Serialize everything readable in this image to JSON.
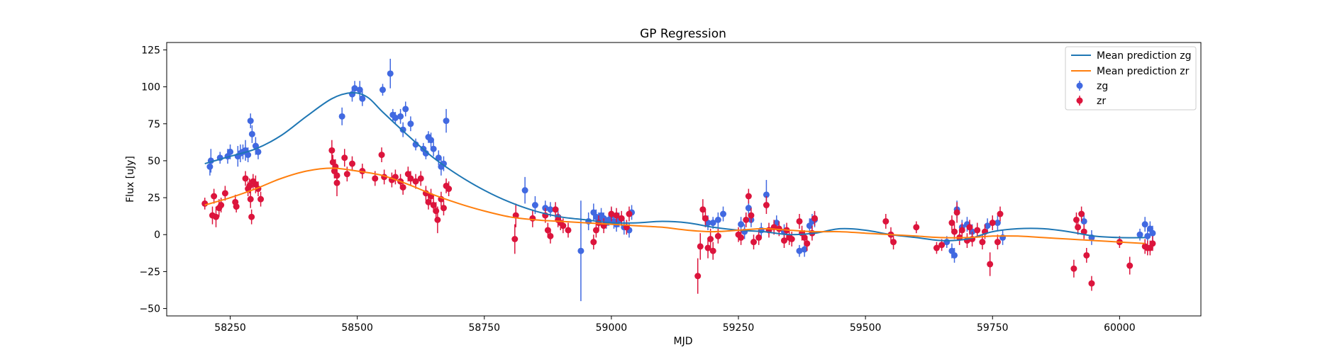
{
  "chart_data": {
    "type": "scatter",
    "title": "GP Regression",
    "xlabel": "MJD",
    "ylabel": "Flux [uJy]",
    "xlim": [
      58125,
      60160
    ],
    "ylim": [
      -55,
      130
    ],
    "xticks": [
      58250,
      58500,
      58750,
      59000,
      59250,
      59500,
      59750,
      60000
    ],
    "yticks": [
      -50,
      -25,
      0,
      25,
      50,
      75,
      100,
      125
    ],
    "grid": false,
    "legend_position": "top-right",
    "colors": {
      "zg_points": "#4169e1",
      "zr_points": "#dc143c",
      "zg_line": "#1f77b4",
      "zr_line": "#ff7f0e"
    },
    "lines": [
      {
        "name": "Mean prediction zg",
        "x": [
          58200,
          58250,
          58300,
          58350,
          58400,
          58450,
          58490,
          58520,
          58550,
          58600,
          58650,
          58700,
          58750,
          58800,
          58850,
          58900,
          58950,
          59000,
          59050,
          59100,
          59150,
          59200,
          59250,
          59300,
          59350,
          59400,
          59450,
          59500,
          59550,
          59600,
          59650,
          59700,
          59750,
          59800,
          59850,
          59900,
          59950,
          60000,
          60050
        ],
        "y": [
          48,
          53,
          58,
          67,
          80,
          92,
          96,
          93,
          83,
          67,
          52,
          40,
          30,
          22,
          16,
          12,
          10,
          8,
          8,
          9,
          8,
          5,
          3,
          2,
          0,
          1,
          4,
          3,
          0,
          -2,
          -4,
          -3,
          2,
          4,
          4,
          2,
          -1,
          -2,
          -2
        ]
      },
      {
        "name": "Mean prediction zr",
        "x": [
          58200,
          58250,
          58300,
          58350,
          58400,
          58450,
          58500,
          58550,
          58600,
          58650,
          58700,
          58750,
          58800,
          58850,
          58900,
          58950,
          59000,
          59050,
          59100,
          59150,
          59200,
          59250,
          59300,
          59350,
          59400,
          59450,
          59500,
          59550,
          59600,
          59650,
          59700,
          59750,
          59800,
          59850,
          59900,
          59950,
          60000,
          60050
        ],
        "y": [
          20,
          25,
          31,
          38,
          43,
          45,
          43,
          40,
          34,
          27,
          21,
          16,
          12,
          10,
          9,
          8,
          7,
          6,
          5,
          3,
          2,
          3,
          4,
          3,
          2,
          2,
          1,
          0,
          -1,
          -2,
          -2,
          -1,
          -1,
          -2,
          -3,
          -4,
          -5,
          -6
        ]
      }
    ],
    "series": [
      {
        "name": "zg",
        "points": [
          [
            58210,
            46,
            6
          ],
          [
            58212,
            50,
            8
          ],
          [
            58230,
            52,
            4
          ],
          [
            58245,
            53,
            5
          ],
          [
            58250,
            56,
            5
          ],
          [
            58265,
            53,
            7
          ],
          [
            58270,
            55,
            6
          ],
          [
            58275,
            56,
            5
          ],
          [
            58280,
            57,
            7
          ],
          [
            58285,
            54,
            5
          ],
          [
            58290,
            77,
            5
          ],
          [
            58293,
            68,
            6
          ],
          [
            58300,
            60,
            6
          ],
          [
            58305,
            56,
            5
          ],
          [
            58470,
            80,
            6
          ],
          [
            58490,
            95,
            5
          ],
          [
            58495,
            99,
            5
          ],
          [
            58505,
            98,
            6
          ],
          [
            58510,
            92,
            5
          ],
          [
            58550,
            98,
            4
          ],
          [
            58565,
            109,
            10
          ],
          [
            58570,
            81,
            4
          ],
          [
            58575,
            79,
            4
          ],
          [
            58585,
            80,
            5
          ],
          [
            58590,
            71,
            5
          ],
          [
            58595,
            85,
            5
          ],
          [
            58605,
            75,
            5
          ],
          [
            58615,
            61,
            4
          ],
          [
            58630,
            58,
            4
          ],
          [
            58635,
            55,
            4
          ],
          [
            58640,
            66,
            4
          ],
          [
            58645,
            64,
            5
          ],
          [
            58650,
            58,
            5
          ],
          [
            58660,
            52,
            5
          ],
          [
            58665,
            46,
            6
          ],
          [
            58670,
            48,
            5
          ],
          [
            58675,
            77,
            8
          ],
          [
            58830,
            30,
            9
          ],
          [
            58850,
            20,
            6
          ],
          [
            58870,
            18,
            5
          ],
          [
            58880,
            17,
            5
          ],
          [
            58895,
            12,
            6
          ],
          [
            58940,
            -11,
            34
          ],
          [
            58955,
            9,
            6
          ],
          [
            58965,
            15,
            6
          ],
          [
            58970,
            12,
            5
          ],
          [
            58975,
            10,
            5
          ],
          [
            58980,
            13,
            5
          ],
          [
            58985,
            11,
            4
          ],
          [
            58990,
            8,
            4
          ],
          [
            58995,
            10,
            4
          ],
          [
            59000,
            13,
            5
          ],
          [
            59005,
            9,
            5
          ],
          [
            59010,
            7,
            5
          ],
          [
            59015,
            10,
            5
          ],
          [
            59025,
            5,
            5
          ],
          [
            59035,
            3,
            5
          ],
          [
            59040,
            15,
            5
          ],
          [
            59190,
            8,
            5
          ],
          [
            59200,
            8,
            4
          ],
          [
            59210,
            10,
            5
          ],
          [
            59220,
            14,
            5
          ],
          [
            59255,
            7,
            5
          ],
          [
            59262,
            2,
            5
          ],
          [
            59270,
            18,
            5
          ],
          [
            59275,
            10,
            5
          ],
          [
            59295,
            3,
            5
          ],
          [
            59305,
            27,
            10
          ],
          [
            59325,
            8,
            5
          ],
          [
            59340,
            2,
            5
          ],
          [
            59370,
            -11,
            4
          ],
          [
            59380,
            -10,
            5
          ],
          [
            59390,
            6,
            5
          ],
          [
            59395,
            9,
            5
          ],
          [
            59400,
            10,
            5
          ],
          [
            59660,
            -5,
            4
          ],
          [
            59670,
            -11,
            5
          ],
          [
            59675,
            -14,
            5
          ],
          [
            59680,
            17,
            6
          ],
          [
            59690,
            5,
            5
          ],
          [
            59700,
            7,
            5
          ],
          [
            59710,
            2,
            5
          ],
          [
            59740,
            6,
            5
          ],
          [
            59760,
            8,
            5
          ],
          [
            59770,
            -2,
            5
          ],
          [
            59930,
            9,
            5
          ],
          [
            59945,
            -2,
            5
          ],
          [
            60040,
            0,
            4
          ],
          [
            60050,
            7,
            5
          ],
          [
            60055,
            -1,
            5
          ],
          [
            60060,
            4,
            5
          ],
          [
            60065,
            1,
            5
          ]
        ]
      },
      {
        "name": "zr",
        "points": [
          [
            58200,
            21,
            4
          ],
          [
            58215,
            13,
            6
          ],
          [
            58218,
            26,
            5
          ],
          [
            58222,
            12,
            7
          ],
          [
            58228,
            18,
            6
          ],
          [
            58232,
            20,
            5
          ],
          [
            58240,
            28,
            5
          ],
          [
            58260,
            22,
            5
          ],
          [
            58262,
            19,
            4
          ],
          [
            58280,
            38,
            5
          ],
          [
            58285,
            31,
            5
          ],
          [
            58288,
            33,
            5
          ],
          [
            58290,
            24,
            6
          ],
          [
            58292,
            12,
            5
          ],
          [
            58295,
            36,
            5
          ],
          [
            58300,
            34,
            6
          ],
          [
            58305,
            31,
            5
          ],
          [
            58310,
            24,
            5
          ],
          [
            58450,
            57,
            7
          ],
          [
            58452,
            49,
            5
          ],
          [
            58455,
            43,
            5
          ],
          [
            58457,
            46,
            5
          ],
          [
            58460,
            35,
            9
          ],
          [
            58460,
            40,
            6
          ],
          [
            58475,
            52,
            6
          ],
          [
            58480,
            41,
            5
          ],
          [
            58490,
            48,
            5
          ],
          [
            58510,
            43,
            5
          ],
          [
            58535,
            38,
            5
          ],
          [
            58548,
            54,
            5
          ],
          [
            58553,
            39,
            5
          ],
          [
            58568,
            37,
            5
          ],
          [
            58575,
            39,
            5
          ],
          [
            58585,
            36,
            5
          ],
          [
            58590,
            32,
            5
          ],
          [
            58600,
            41,
            5
          ],
          [
            58605,
            38,
            5
          ],
          [
            58615,
            36,
            5
          ],
          [
            58625,
            38,
            5
          ],
          [
            58635,
            28,
            5
          ],
          [
            58640,
            22,
            5
          ],
          [
            58645,
            26,
            5
          ],
          [
            58650,
            20,
            5
          ],
          [
            58655,
            16,
            6
          ],
          [
            58658,
            10,
            9
          ],
          [
            58665,
            24,
            5
          ],
          [
            58670,
            18,
            5
          ],
          [
            58675,
            33,
            5
          ],
          [
            58680,
            31,
            5
          ],
          [
            58810,
            -3,
            10
          ],
          [
            58812,
            13,
            8
          ],
          [
            58845,
            11,
            6
          ],
          [
            58870,
            13,
            5
          ],
          [
            58875,
            3,
            5
          ],
          [
            58880,
            -1,
            5
          ],
          [
            58890,
            17,
            5
          ],
          [
            58895,
            10,
            5
          ],
          [
            58900,
            8,
            5
          ],
          [
            58905,
            6,
            5
          ],
          [
            58915,
            3,
            5
          ],
          [
            58965,
            -5,
            5
          ],
          [
            58970,
            3,
            5
          ],
          [
            58975,
            8,
            5
          ],
          [
            58985,
            6,
            5
          ],
          [
            59000,
            14,
            5
          ],
          [
            59010,
            13,
            5
          ],
          [
            59020,
            11,
            5
          ],
          [
            59030,
            5,
            5
          ],
          [
            59035,
            14,
            5
          ],
          [
            59170,
            -28,
            12
          ],
          [
            59175,
            -8,
            9
          ],
          [
            59180,
            17,
            7
          ],
          [
            59185,
            11,
            6
          ],
          [
            59190,
            -9,
            7
          ],
          [
            59195,
            -3,
            7
          ],
          [
            59200,
            -11,
            6
          ],
          [
            59210,
            -1,
            5
          ],
          [
            59250,
            0,
            5
          ],
          [
            59255,
            -2,
            5
          ],
          [
            59265,
            10,
            5
          ],
          [
            59270,
            26,
            5
          ],
          [
            59275,
            13,
            5
          ],
          [
            59280,
            -5,
            5
          ],
          [
            59290,
            -2,
            5
          ],
          [
            59305,
            20,
            6
          ],
          [
            59310,
            3,
            5
          ],
          [
            59320,
            5,
            5
          ],
          [
            59330,
            4,
            5
          ],
          [
            59340,
            -4,
            5
          ],
          [
            59345,
            3,
            5
          ],
          [
            59350,
            -2,
            5
          ],
          [
            59355,
            -3,
            5
          ],
          [
            59370,
            9,
            5
          ],
          [
            59375,
            1,
            5
          ],
          [
            59380,
            -2,
            5
          ],
          [
            59385,
            -6,
            5
          ],
          [
            59395,
            1,
            5
          ],
          [
            59400,
            11,
            5
          ],
          [
            59540,
            9,
            5
          ],
          [
            59550,
            0,
            5
          ],
          [
            59555,
            -5,
            5
          ],
          [
            59600,
            5,
            4
          ],
          [
            59640,
            -9,
            4
          ],
          [
            59650,
            -7,
            4
          ],
          [
            59670,
            8,
            5
          ],
          [
            59675,
            2,
            5
          ],
          [
            59680,
            15,
            7
          ],
          [
            59685,
            -2,
            5
          ],
          [
            59690,
            3,
            5
          ],
          [
            59700,
            -4,
            5
          ],
          [
            59705,
            5,
            5
          ],
          [
            59710,
            -3,
            5
          ],
          [
            59720,
            3,
            5
          ],
          [
            59730,
            -5,
            5
          ],
          [
            59735,
            2,
            5
          ],
          [
            59745,
            -20,
            8
          ],
          [
            59750,
            8,
            5
          ],
          [
            59760,
            -5,
            5
          ],
          [
            59765,
            14,
            5
          ],
          [
            59910,
            -23,
            6
          ],
          [
            59915,
            10,
            5
          ],
          [
            59918,
            5,
            5
          ],
          [
            59925,
            14,
            5
          ],
          [
            59930,
            2,
            5
          ],
          [
            59935,
            -14,
            5
          ],
          [
            59945,
            -33,
            5
          ],
          [
            60000,
            -5,
            4
          ],
          [
            60020,
            -21,
            6
          ],
          [
            60050,
            -8,
            5
          ],
          [
            60055,
            -9,
            5
          ],
          [
            60060,
            -9,
            5
          ],
          [
            60065,
            -6,
            5
          ]
        ]
      }
    ]
  }
}
